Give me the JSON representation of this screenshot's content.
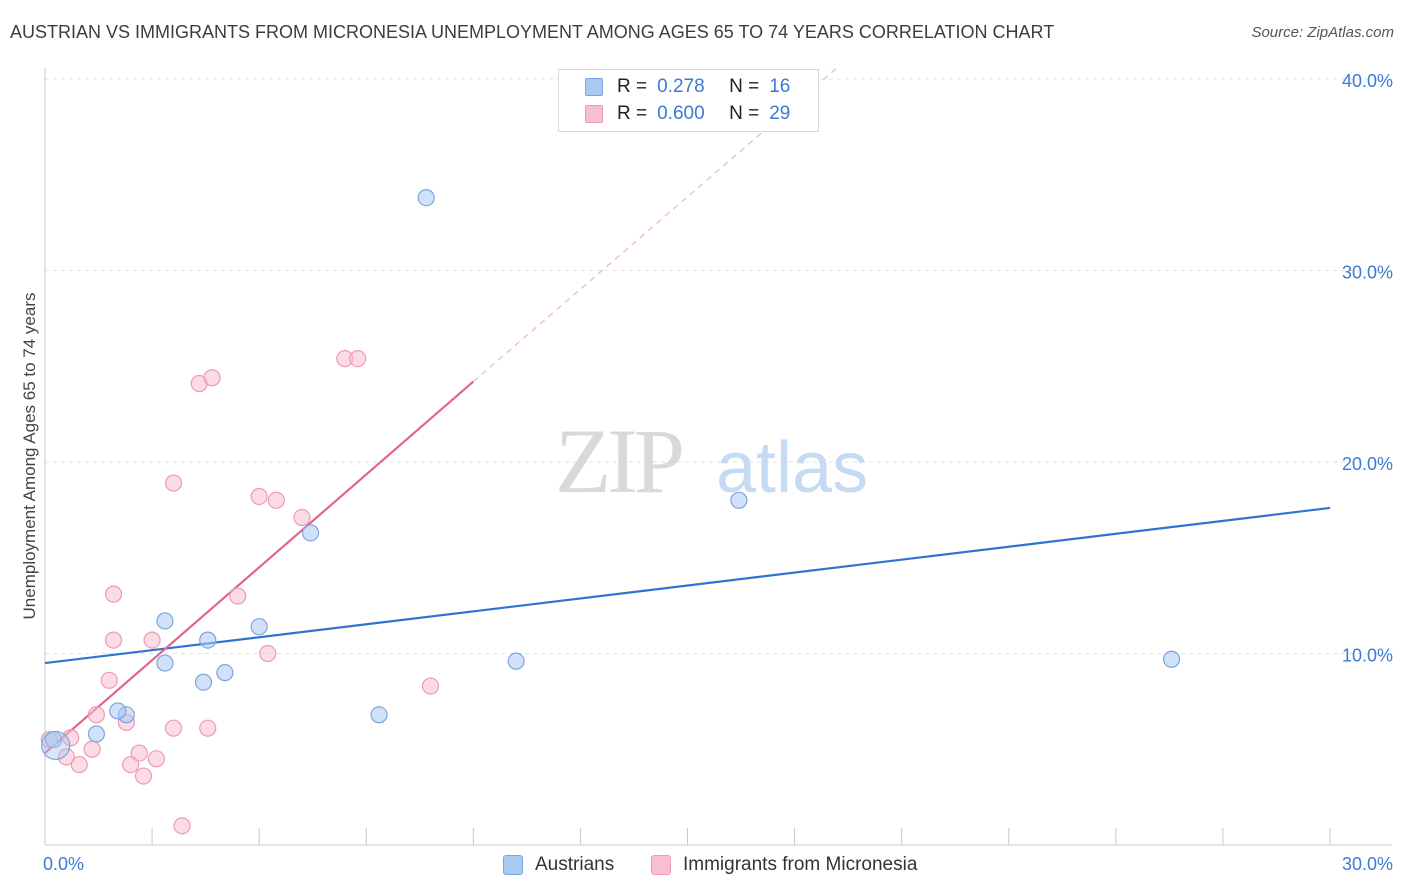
{
  "title": "AUSTRIAN VS IMMIGRANTS FROM MICRONESIA UNEMPLOYMENT AMONG AGES 65 TO 74 YEARS CORRELATION CHART",
  "source": "Source: ZipAtlas.com",
  "watermark": {
    "zip": "ZIP",
    "atlas": "atlas"
  },
  "legend": {
    "rows": [
      {
        "r_label": "R =",
        "r_value": "0.278",
        "n_label": "N =",
        "n_value": "16"
      },
      {
        "r_label": "R =",
        "r_value": "0.600",
        "n_label": "N =",
        "n_value": "29"
      }
    ]
  },
  "bottom_legend": {
    "austrians": "Austrians",
    "micronesia": "Immigrants from Micronesia"
  },
  "colors": {
    "blue_fill": "#a9c8f2",
    "blue_stroke": "#7aa6df",
    "blue_line": "#2f73d2",
    "pink_fill": "#f7bfd0",
    "pink_stroke": "#ee9ab5",
    "pink_line": "#e2638e",
    "axis_text": "#3a7bd5",
    "grid": "#e2e2e2"
  },
  "chart_data": {
    "type": "scatter",
    "title": "AUSTRIAN VS IMMIGRANTS FROM MICRONESIA UNEMPLOYMENT AMONG AGES 65 TO 74 YEARS CORRELATION CHART",
    "xlabel": "",
    "ylabel": "Unemployment Among Ages 65 to 74 years",
    "xlim": [
      0,
      30
    ],
    "ylim": [
      0,
      40
    ],
    "x_tick_labels": [
      "0.0%",
      "30.0%"
    ],
    "y_ticks": [
      10,
      20,
      30,
      40
    ],
    "y_tick_labels": [
      "10.0%",
      "20.0%",
      "30.0%",
      "40.0%"
    ],
    "series": [
      {
        "name": "Austrians",
        "color": "blue",
        "R": 0.278,
        "N": 16,
        "points": [
          [
            0.2,
            5.5
          ],
          [
            1.2,
            5.8
          ],
          [
            1.9,
            6.8
          ],
          [
            1.7,
            7.0
          ],
          [
            2.8,
            9.5
          ],
          [
            2.8,
            11.7
          ],
          [
            3.8,
            10.7
          ],
          [
            3.7,
            8.5
          ],
          [
            4.2,
            9.0
          ],
          [
            5.0,
            11.4
          ],
          [
            6.2,
            16.3
          ],
          [
            7.8,
            6.8
          ],
          [
            8.9,
            33.8
          ],
          [
            11.0,
            9.6
          ],
          [
            16.2,
            18.0
          ],
          [
            26.3,
            9.7
          ]
        ],
        "trend": {
          "x0": 0,
          "y0": 9.5,
          "x1": 30,
          "y1": 17.6
        }
      },
      {
        "name": "Immigrants from Micronesia",
        "color": "pink",
        "R": 0.6,
        "N": 29,
        "points": [
          [
            0.1,
            5.5
          ],
          [
            0.6,
            5.6
          ],
          [
            1.1,
            5.0
          ],
          [
            0.5,
            4.6
          ],
          [
            0.8,
            4.2
          ],
          [
            1.2,
            6.8
          ],
          [
            1.5,
            8.6
          ],
          [
            1.6,
            10.7
          ],
          [
            1.9,
            6.4
          ],
          [
            2.0,
            4.2
          ],
          [
            2.3,
            3.6
          ],
          [
            2.2,
            4.8
          ],
          [
            1.6,
            13.1
          ],
          [
            2.5,
            10.7
          ],
          [
            2.6,
            4.5
          ],
          [
            3.0,
            18.9
          ],
          [
            3.0,
            6.1
          ],
          [
            3.2,
            1.0
          ],
          [
            3.6,
            24.1
          ],
          [
            3.8,
            6.1
          ],
          [
            3.9,
            24.4
          ],
          [
            4.5,
            13.0
          ],
          [
            5.0,
            18.2
          ],
          [
            5.2,
            10.0
          ],
          [
            5.4,
            18.0
          ],
          [
            6.0,
            17.1
          ],
          [
            7.0,
            25.4
          ],
          [
            7.3,
            25.4
          ],
          [
            9.0,
            8.3
          ]
        ],
        "trend": {
          "x0": 0,
          "y0": 4.8,
          "x1": 10.0,
          "y1": 24.2
        },
        "trend_extension": {
          "x0": 10.0,
          "y0": 24.2,
          "x1": 18.5,
          "y1": 40.6
        }
      }
    ]
  }
}
